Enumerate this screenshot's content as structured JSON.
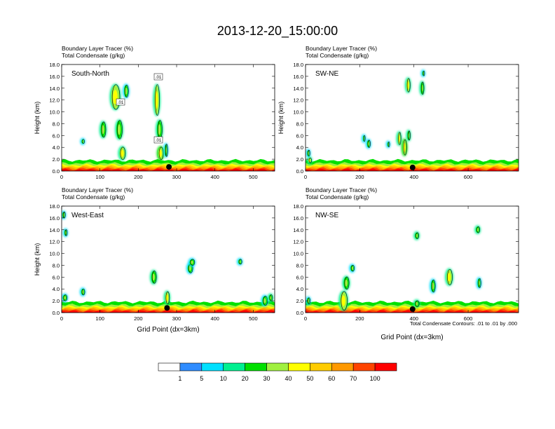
{
  "title": "2013-12-20_15:00:00",
  "footnote": "Total Condensate Contours: .01 to .01 by .000",
  "colorbar": {
    "colors": [
      "#ffffff",
      "#2f8cff",
      "#00e0ff",
      "#00f090",
      "#00e000",
      "#a0f040",
      "#ffff00",
      "#ffcc00",
      "#ff9900",
      "#ff4400",
      "#ff0000"
    ],
    "labels": [
      "1",
      "5",
      "10",
      "20",
      "30",
      "40",
      "50",
      "60",
      "70",
      "100"
    ]
  },
  "chart_data": [
    {
      "type": "heatmap",
      "panel_label": "South-North",
      "subtitle_lines": [
        "Boundary Layer Tracer   (%)",
        "Total Condensate   (g/kg)"
      ],
      "ylabel": "Height (km)",
      "xlabel": "",
      "xlim": [
        0,
        556
      ],
      "ylim": [
        0,
        18
      ],
      "xticks": [
        "0",
        "100",
        "200",
        "300",
        "400",
        "500"
      ],
      "xtick_values": [
        0,
        100,
        200,
        300,
        400,
        500
      ],
      "yticks": [
        "0.0",
        "2.0",
        "4.0",
        "6.0",
        "8.0",
        "10.0",
        "12.0",
        "14.0",
        "16.0",
        "18.0"
      ],
      "contour_labels": [
        ".01",
        ".01",
        ".01"
      ],
      "marker": {
        "x": 280,
        "y": 0.7
      },
      "plumes": [
        {
          "x": 55,
          "y": 5,
          "w": 6,
          "h": 0.7,
          "v": 20
        },
        {
          "x": 108,
          "y": 7,
          "w": 12,
          "h": 2.5,
          "v": 25
        },
        {
          "x": 140,
          "y": 12.5,
          "w": 22,
          "h": 4,
          "v": 30
        },
        {
          "x": 168,
          "y": 13.5,
          "w": 10,
          "h": 2,
          "v": 20
        },
        {
          "x": 150,
          "y": 7,
          "w": 14,
          "h": 3,
          "v": 25
        },
        {
          "x": 158,
          "y": 3,
          "w": 14,
          "h": 2,
          "v": 30
        },
        {
          "x": 248,
          "y": 12,
          "w": 12,
          "h": 5,
          "v": 30
        },
        {
          "x": 255,
          "y": 7,
          "w": 12,
          "h": 3,
          "v": 25
        },
        {
          "x": 258,
          "y": 3,
          "w": 12,
          "h": 2,
          "v": 35
        },
        {
          "x": 272,
          "y": 3.5,
          "w": 6,
          "h": 2,
          "v": 20
        }
      ]
    },
    {
      "type": "heatmap",
      "panel_label": "SW-NE",
      "subtitle_lines": [
        "Boundary Layer Tracer   (%)",
        "Total Condensate   (g/kg)"
      ],
      "ylabel": "Height (km)",
      "xlabel": "",
      "xlim": [
        0,
        786
      ],
      "ylim": [
        0,
        18
      ],
      "xticks": [
        "0",
        "200",
        "400",
        "600"
      ],
      "xtick_values": [
        0,
        200,
        400,
        600
      ],
      "yticks": [
        "0.0",
        "2.0",
        "4.0",
        "6.0",
        "8.0",
        "10.0",
        "12.0",
        "14.0",
        "16.0",
        "18.0"
      ],
      "contour_labels": [],
      "marker": {
        "x": 395,
        "y": 0.6
      },
      "plumes": [
        {
          "x": 10,
          "y": 3,
          "w": 8,
          "h": 1,
          "v": 20
        },
        {
          "x": 15,
          "y": 1.8,
          "w": 10,
          "h": 0.8,
          "v": 30
        },
        {
          "x": 430,
          "y": 14,
          "w": 10,
          "h": 2,
          "v": 25
        },
        {
          "x": 434,
          "y": 16.5,
          "w": 6,
          "h": 0.8,
          "v": 20
        },
        {
          "x": 215,
          "y": 5.5,
          "w": 6,
          "h": 1,
          "v": 20
        },
        {
          "x": 232,
          "y": 4.6,
          "w": 10,
          "h": 1.2,
          "v": 20
        },
        {
          "x": 305,
          "y": 4.5,
          "w": 6,
          "h": 0.8,
          "v": 20
        },
        {
          "x": 345,
          "y": 5.5,
          "w": 10,
          "h": 2,
          "v": 30
        },
        {
          "x": 365,
          "y": 4,
          "w": 12,
          "h": 2.5,
          "v": 35
        },
        {
          "x": 380,
          "y": 6,
          "w": 8,
          "h": 1.5,
          "v": 25
        },
        {
          "x": 378,
          "y": 14.5,
          "w": 12,
          "h": 2.2,
          "v": 30
        }
      ]
    },
    {
      "type": "heatmap",
      "panel_label": "West-East",
      "subtitle_lines": [
        "Boundary Layer Tracer   (%)",
        "Total Condensate   (g/kg)"
      ],
      "ylabel": "Height (km)",
      "xlabel": "Grid Point (dx=3km)",
      "xlim": [
        0,
        556
      ],
      "ylim": [
        0,
        18
      ],
      "xticks": [
        "0",
        "100",
        "200",
        "300",
        "400",
        "500"
      ],
      "xtick_values": [
        0,
        100,
        200,
        300,
        400,
        500
      ],
      "yticks": [
        "0.0",
        "2.0",
        "4.0",
        "6.0",
        "8.0",
        "10.0",
        "12.0",
        "14.0",
        "16.0",
        "18.0"
      ],
      "contour_labels": [],
      "marker": {
        "x": 275,
        "y": 0.8
      },
      "plumes": [
        {
          "x": 5,
          "y": 16.5,
          "w": 6,
          "h": 1,
          "v": 20
        },
        {
          "x": 10,
          "y": 13.5,
          "w": 6,
          "h": 1,
          "v": 20
        },
        {
          "x": 8,
          "y": 2.5,
          "w": 10,
          "h": 1,
          "v": 20
        },
        {
          "x": 55,
          "y": 3.5,
          "w": 8,
          "h": 1,
          "v": 20
        },
        {
          "x": 240,
          "y": 6,
          "w": 12,
          "h": 2,
          "v": 25
        },
        {
          "x": 275,
          "y": 2.5,
          "w": 10,
          "h": 2,
          "v": 30
        },
        {
          "x": 335,
          "y": 7.5,
          "w": 12,
          "h": 1.5,
          "v": 20
        },
        {
          "x": 340,
          "y": 8.5,
          "w": 12,
          "h": 1,
          "v": 20
        },
        {
          "x": 465,
          "y": 8.6,
          "w": 8,
          "h": 0.8,
          "v": 20
        },
        {
          "x": 530,
          "y": 2,
          "w": 12,
          "h": 1.5,
          "v": 20
        },
        {
          "x": 545,
          "y": 2.5,
          "w": 8,
          "h": 1,
          "v": 25
        }
      ]
    },
    {
      "type": "heatmap",
      "panel_label": "NW-SE",
      "subtitle_lines": [
        "Boundary Layer Tracer   (%)",
        "Total Condensate   (g/kg)"
      ],
      "ylabel": "",
      "xlabel": "Grid Point (dx=3km)",
      "xlim": [
        0,
        786
      ],
      "ylim": [
        0,
        18
      ],
      "xticks": [
        "0",
        "200",
        "400",
        "600"
      ],
      "xtick_values": [
        0,
        200,
        400,
        600
      ],
      "yticks": [
        "0.0",
        "2.0",
        "4.0",
        "6.0",
        "8.0",
        "10.0",
        "12.0",
        "14.0",
        "16.0",
        "18.0"
      ],
      "contour_labels": [],
      "marker": {
        "x": 395,
        "y": 0.6
      },
      "plumes": [
        {
          "x": 10,
          "y": 2,
          "w": 10,
          "h": 1,
          "v": 20
        },
        {
          "x": 140,
          "y": 2,
          "w": 25,
          "h": 3,
          "v": 30
        },
        {
          "x": 150,
          "y": 5,
          "w": 18,
          "h": 2,
          "v": 25
        },
        {
          "x": 172,
          "y": 7.5,
          "w": 12,
          "h": 1,
          "v": 20
        },
        {
          "x": 410,
          "y": 13,
          "w": 12,
          "h": 1,
          "v": 25
        },
        {
          "x": 410,
          "y": 1.5,
          "w": 15,
          "h": 1,
          "v": 25
        },
        {
          "x": 470,
          "y": 4.5,
          "w": 14,
          "h": 2,
          "v": 20
        },
        {
          "x": 530,
          "y": 6,
          "w": 20,
          "h": 2.5,
          "v": 30
        },
        {
          "x": 640,
          "y": 5,
          "w": 10,
          "h": 1.5,
          "v": 20
        },
        {
          "x": 635,
          "y": 14,
          "w": 12,
          "h": 1,
          "v": 25
        }
      ]
    }
  ]
}
